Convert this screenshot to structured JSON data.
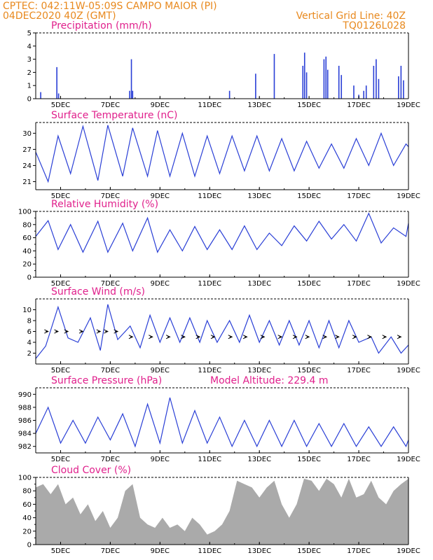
{
  "header": {
    "line1_left": "CPTEC:   042:11W-05:09S  CAMPO MAIOR (PI)",
    "line2_left": "04DEC2020 40Z (GMT)",
    "line1_right": "Vertical Grid Line: 40Z",
    "line2_right": "TQ0126L028"
  },
  "colors": {
    "header": "#e8891e",
    "title": "#e0208c",
    "line": "#2a3fd6",
    "bar": "#2a3fd6",
    "area": "#aaaaaa",
    "wind_arrow": "#000000"
  },
  "chart_data": [
    {
      "type": "bar",
      "title": "Precipitation (mm/h)",
      "xlabel": "",
      "ylabel": "",
      "x_ticks": [
        "5DEC",
        "7DEC",
        "9DEC",
        "11DEC",
        "13DEC",
        "15DEC",
        "17DEC",
        "19DEC"
      ],
      "xlim": [
        4,
        19
      ],
      "ylim": [
        0,
        5
      ],
      "y_ticks": [
        0,
        1,
        2,
        3,
        4,
        5
      ],
      "series": [
        {
          "values": [
            [
              4.2,
              0.5
            ],
            [
              4.85,
              2.4
            ],
            [
              4.92,
              0.4
            ],
            [
              7.78,
              0.6
            ],
            [
              7.85,
              3.0
            ],
            [
              7.9,
              0.6
            ],
            [
              11.8,
              0.6
            ],
            [
              12.85,
              1.9
            ],
            [
              13.6,
              3.4
            ],
            [
              14.75,
              2.5
            ],
            [
              14.82,
              3.5
            ],
            [
              14.9,
              2.0
            ],
            [
              15.6,
              3.0
            ],
            [
              15.68,
              3.2
            ],
            [
              15.75,
              2.2
            ],
            [
              16.2,
              2.5
            ],
            [
              16.3,
              1.8
            ],
            [
              16.8,
              1.0
            ],
            [
              17.0,
              0.3
            ],
            [
              17.2,
              0.6
            ],
            [
              17.3,
              1.0
            ],
            [
              17.6,
              2.5
            ],
            [
              17.7,
              3.0
            ],
            [
              17.8,
              1.5
            ],
            [
              18.6,
              1.7
            ],
            [
              18.7,
              2.5
            ],
            [
              18.8,
              1.4
            ]
          ]
        }
      ]
    },
    {
      "type": "line",
      "title": "Surface Temperature (nC)",
      "xlabel": "",
      "ylabel": "",
      "x_ticks": [
        "5DEC",
        "7DEC",
        "9DEC",
        "11DEC",
        "13DEC",
        "15DEC",
        "17DEC",
        "19DEC"
      ],
      "xlim": [
        4,
        19
      ],
      "ylim": [
        19.5,
        32
      ],
      "y_ticks": [
        21,
        24,
        27,
        30
      ],
      "series": [
        {
          "points": [
            [
              4,
              26.5
            ],
            [
              4.5,
              21
            ],
            [
              4.9,
              29.5
            ],
            [
              5.4,
              22.5
            ],
            [
              5.9,
              31.3
            ],
            [
              6.5,
              21.2
            ],
            [
              6.9,
              31.5
            ],
            [
              7.5,
              22
            ],
            [
              7.9,
              31
            ],
            [
              8.5,
              22
            ],
            [
              8.9,
              30.5
            ],
            [
              9.4,
              22
            ],
            [
              9.9,
              30
            ],
            [
              10.4,
              22
            ],
            [
              10.9,
              29.5
            ],
            [
              11.4,
              22.5
            ],
            [
              11.9,
              29.5
            ],
            [
              12.4,
              23
            ],
            [
              12.9,
              29.5
            ],
            [
              13.4,
              23
            ],
            [
              13.9,
              29
            ],
            [
              14.4,
              23
            ],
            [
              14.9,
              28.5
            ],
            [
              15.4,
              23.5
            ],
            [
              15.9,
              28
            ],
            [
              16.4,
              23.5
            ],
            [
              16.9,
              29
            ],
            [
              17.4,
              24
            ],
            [
              17.9,
              30
            ],
            [
              18.4,
              24
            ],
            [
              18.9,
              28
            ],
            [
              19,
              27.5
            ]
          ]
        }
      ]
    },
    {
      "type": "line",
      "title": "Relative Humidity (%)",
      "xlabel": "",
      "ylabel": "",
      "x_ticks": [
        "5DEC",
        "7DEC",
        "9DEC",
        "11DEC",
        "13DEC",
        "15DEC",
        "17DEC",
        "19DEC"
      ],
      "xlim": [
        4,
        19
      ],
      "ylim": [
        0,
        100
      ],
      "y_ticks": [
        0,
        10,
        20,
        30,
        40,
        50,
        60,
        70,
        80,
        90,
        100
      ],
      "y_tick_labels": [
        0,
        20,
        40,
        60,
        80,
        100
      ],
      "series": [
        {
          "points": [
            [
              4,
              62
            ],
            [
              4.5,
              86
            ],
            [
              4.9,
              42
            ],
            [
              5.4,
              80
            ],
            [
              5.9,
              38
            ],
            [
              6.5,
              85
            ],
            [
              6.9,
              38
            ],
            [
              7.5,
              82
            ],
            [
              7.9,
              40
            ],
            [
              8.5,
              90
            ],
            [
              8.9,
              38
            ],
            [
              9.4,
              72
            ],
            [
              9.9,
              40
            ],
            [
              10.4,
              77
            ],
            [
              10.9,
              42
            ],
            [
              11.4,
              72
            ],
            [
              11.9,
              42
            ],
            [
              12.4,
              78
            ],
            [
              12.9,
              42
            ],
            [
              13.4,
              67
            ],
            [
              13.9,
              48
            ],
            [
              14.4,
              78
            ],
            [
              14.9,
              55
            ],
            [
              15.4,
              85
            ],
            [
              15.9,
              58
            ],
            [
              16.4,
              80
            ],
            [
              16.9,
              55
            ],
            [
              17.4,
              97
            ],
            [
              17.9,
              52
            ],
            [
              18.4,
              75
            ],
            [
              18.9,
              62
            ],
            [
              19,
              82
            ]
          ]
        }
      ]
    },
    {
      "type": "line",
      "title": "Surface Wind (m/s)",
      "xlabel": "",
      "ylabel": "",
      "x_ticks": [
        "5DEC",
        "7DEC",
        "9DEC",
        "11DEC",
        "13DEC",
        "15DEC",
        "17DEC",
        "19DEC"
      ],
      "xlim": [
        4,
        19
      ],
      "ylim": [
        0,
        12
      ],
      "y_ticks": [
        2,
        4,
        6,
        8,
        10
      ],
      "series": [
        {
          "points": [
            [
              4,
              1
            ],
            [
              4.4,
              3.3
            ],
            [
              4.9,
              10.5
            ],
            [
              5.3,
              4.8
            ],
            [
              5.7,
              4
            ],
            [
              6.2,
              8.5
            ],
            [
              6.6,
              2.5
            ],
            [
              6.9,
              11
            ],
            [
              7.3,
              4.5
            ],
            [
              7.8,
              7
            ],
            [
              8.2,
              3
            ],
            [
              8.6,
              9
            ],
            [
              9,
              4
            ],
            [
              9.4,
              8.5
            ],
            [
              9.8,
              4
            ],
            [
              10.2,
              8.5
            ],
            [
              10.6,
              4
            ],
            [
              10.9,
              8
            ],
            [
              11.3,
              4
            ],
            [
              11.8,
              8
            ],
            [
              12.2,
              4
            ],
            [
              12.6,
              9
            ],
            [
              13,
              4
            ],
            [
              13.4,
              8
            ],
            [
              13.8,
              3.5
            ],
            [
              14.2,
              8
            ],
            [
              14.6,
              3.5
            ],
            [
              15,
              8
            ],
            [
              15.4,
              3
            ],
            [
              15.8,
              8
            ],
            [
              16.2,
              3
            ],
            [
              16.6,
              8
            ],
            [
              17,
              4
            ],
            [
              17.5,
              5
            ],
            [
              17.8,
              2
            ],
            [
              18.3,
              5
            ],
            [
              18.7,
              2
            ],
            [
              19,
              3.5
            ]
          ]
        }
      ],
      "wind_vectors": [
        [
          4.4,
          6,
          4.5,
          6
        ],
        [
          4.8,
          6,
          4.9,
          6
        ],
        [
          5.2,
          6,
          5.3,
          6
        ],
        [
          5.8,
          6,
          5.9,
          6
        ],
        [
          6.5,
          6,
          6.6,
          6
        ],
        [
          6.8,
          6,
          6.9,
          6
        ],
        [
          7.2,
          6,
          7.3,
          6
        ],
        [
          7.8,
          5,
          7.9,
          5
        ],
        [
          8.6,
          5,
          8.7,
          5
        ],
        [
          9.3,
          5,
          9.4,
          5
        ],
        [
          9.9,
          5,
          10,
          5
        ],
        [
          10.5,
          5,
          10.6,
          5
        ],
        [
          11.1,
          5,
          11.2,
          5
        ],
        [
          11.8,
          5,
          11.9,
          5
        ],
        [
          12.4,
          5,
          12.5,
          5
        ],
        [
          13.1,
          5,
          13.2,
          5
        ],
        [
          13.8,
          5,
          13.9,
          5
        ],
        [
          14.4,
          5,
          14.5,
          5
        ],
        [
          14.9,
          5,
          15,
          5
        ],
        [
          15.6,
          5,
          15.7,
          5
        ],
        [
          16.1,
          5,
          16.2,
          5
        ],
        [
          16.8,
          5,
          16.9,
          5
        ],
        [
          17.4,
          5,
          17.5,
          5
        ],
        [
          18,
          5,
          18.1,
          5
        ],
        [
          18.6,
          5,
          18.7,
          5
        ]
      ]
    },
    {
      "type": "line",
      "title": "Surface Pressure (hPa)",
      "annotation": "Model Altitude: 229.4 m",
      "xlabel": "",
      "ylabel": "",
      "x_ticks": [
        "5DEC",
        "7DEC",
        "9DEC",
        "11DEC",
        "13DEC",
        "15DEC",
        "17DEC",
        "19DEC"
      ],
      "xlim": [
        4,
        19
      ],
      "ylim": [
        981,
        991
      ],
      "y_ticks": [
        982,
        984,
        986,
        988,
        990
      ],
      "series": [
        {
          "points": [
            [
              4,
              984
            ],
            [
              4.5,
              988
            ],
            [
              5,
              982.5
            ],
            [
              5.5,
              986
            ],
            [
              6,
              982.5
            ],
            [
              6.5,
              986.5
            ],
            [
              7,
              983
            ],
            [
              7.5,
              987
            ],
            [
              8,
              982
            ],
            [
              8.5,
              988.5
            ],
            [
              9,
              982.5
            ],
            [
              9.4,
              989.5
            ],
            [
              9.9,
              982.5
            ],
            [
              10.4,
              987.5
            ],
            [
              10.9,
              982.5
            ],
            [
              11.4,
              986.5
            ],
            [
              11.9,
              982
            ],
            [
              12.4,
              986
            ],
            [
              12.9,
              982
            ],
            [
              13.4,
              986
            ],
            [
              13.9,
              982
            ],
            [
              14.4,
              986
            ],
            [
              14.9,
              982
            ],
            [
              15.4,
              985.5
            ],
            [
              15.9,
              982
            ],
            [
              16.4,
              985.5
            ],
            [
              16.9,
              982
            ],
            [
              17.4,
              985
            ],
            [
              17.9,
              982
            ],
            [
              18.4,
              985
            ],
            [
              18.9,
              982
            ],
            [
              19,
              983
            ]
          ]
        }
      ]
    },
    {
      "type": "area",
      "title": "Cloud Cover (%)",
      "xlabel": "",
      "ylabel": "",
      "x_ticks": [
        "5DEC",
        "7DEC",
        "9DEC",
        "11DEC",
        "13DEC",
        "15DEC",
        "17DEC",
        "19DEC"
      ],
      "xlim": [
        4,
        19
      ],
      "ylim": [
        0,
        100
      ],
      "y_ticks": [
        0,
        10,
        20,
        30,
        40,
        50,
        60,
        70,
        80,
        90,
        100
      ],
      "y_tick_labels": [
        0,
        20,
        40,
        60,
        80,
        100
      ],
      "series": [
        {
          "points": [
            [
              4,
              85
            ],
            [
              4.3,
              90
            ],
            [
              4.6,
              75
            ],
            [
              4.9,
              90
            ],
            [
              5.2,
              60
            ],
            [
              5.5,
              70
            ],
            [
              5.8,
              45
            ],
            [
              6.1,
              60
            ],
            [
              6.4,
              35
            ],
            [
              6.7,
              50
            ],
            [
              7,
              25
            ],
            [
              7.3,
              40
            ],
            [
              7.6,
              80
            ],
            [
              7.9,
              90
            ],
            [
              8.2,
              40
            ],
            [
              8.5,
              30
            ],
            [
              8.8,
              25
            ],
            [
              9.1,
              40
            ],
            [
              9.4,
              25
            ],
            [
              9.7,
              30
            ],
            [
              10,
              20
            ],
            [
              10.3,
              40
            ],
            [
              10.6,
              30
            ],
            [
              10.9,
              15
            ],
            [
              11.2,
              20
            ],
            [
              11.5,
              30
            ],
            [
              11.8,
              50
            ],
            [
              12.1,
              95
            ],
            [
              12.4,
              90
            ],
            [
              12.7,
              85
            ],
            [
              13,
              70
            ],
            [
              13.3,
              85
            ],
            [
              13.6,
              95
            ],
            [
              13.9,
              60
            ],
            [
              14.2,
              40
            ],
            [
              14.5,
              60
            ],
            [
              14.8,
              98
            ],
            [
              15.1,
              95
            ],
            [
              15.4,
              80
            ],
            [
              15.7,
              98
            ],
            [
              16,
              90
            ],
            [
              16.3,
              70
            ],
            [
              16.6,
              98
            ],
            [
              16.9,
              70
            ],
            [
              17.2,
              75
            ],
            [
              17.5,
              95
            ],
            [
              17.8,
              70
            ],
            [
              18.1,
              60
            ],
            [
              18.4,
              80
            ],
            [
              18.7,
              90
            ],
            [
              19,
              98
            ]
          ]
        }
      ]
    }
  ]
}
